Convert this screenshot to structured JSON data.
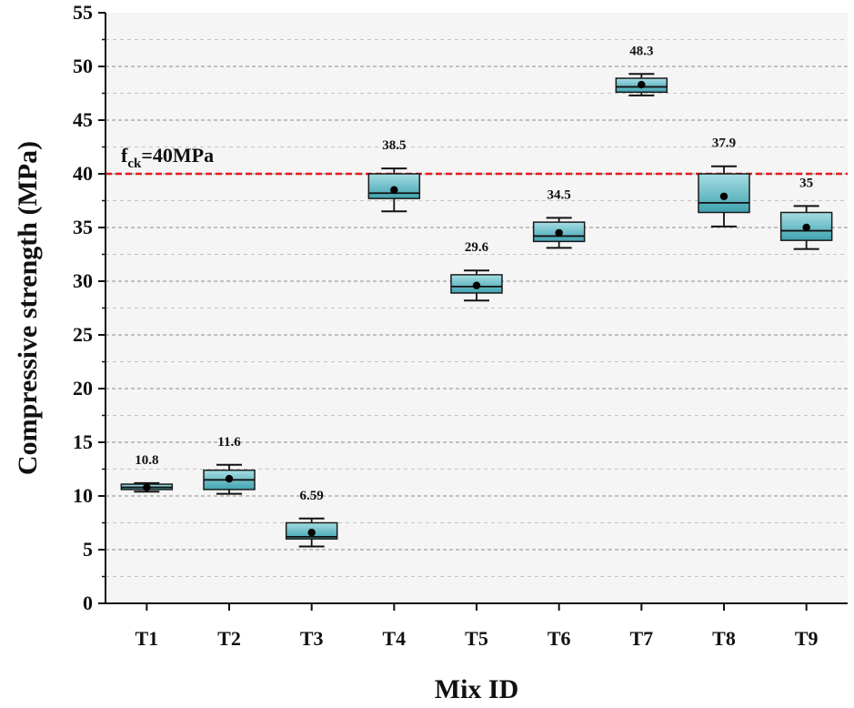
{
  "chart_data": {
    "type": "box",
    "xlabel": "Mix ID",
    "ylabel": "Compressive strength (MPa)",
    "ylim": [
      0,
      55
    ],
    "yticks": [
      0,
      5,
      10,
      15,
      20,
      25,
      30,
      35,
      40,
      45,
      50,
      55
    ],
    "ytick_labels": [
      "0",
      "5",
      "10",
      "15",
      "20",
      "25",
      "30",
      "35",
      "40",
      "45",
      "50",
      "55"
    ],
    "minor_grid_step": 2.5,
    "categories": [
      "T1",
      "T2",
      "T3",
      "T4",
      "T5",
      "T6",
      "T7",
      "T8",
      "T9"
    ],
    "boxes": [
      {
        "category": "T1",
        "whisker_low": 10.4,
        "q1": 10.6,
        "median": 10.8,
        "q3": 11.1,
        "whisker_high": 11.2,
        "mean": 10.8,
        "label": "10.8"
      },
      {
        "category": "T2",
        "whisker_low": 10.2,
        "q1": 10.6,
        "median": 11.5,
        "q3": 12.4,
        "whisker_high": 12.9,
        "mean": 11.6,
        "label": "11.6"
      },
      {
        "category": "T3",
        "whisker_low": 5.3,
        "q1": 6.0,
        "median": 6.2,
        "q3": 7.5,
        "whisker_high": 7.9,
        "mean": 6.59,
        "label": "6.59"
      },
      {
        "category": "T4",
        "whisker_low": 36.5,
        "q1": 37.7,
        "median": 38.2,
        "q3": 40.0,
        "whisker_high": 40.5,
        "mean": 38.5,
        "label": "38.5"
      },
      {
        "category": "T5",
        "whisker_low": 28.2,
        "q1": 28.9,
        "median": 29.5,
        "q3": 30.6,
        "whisker_high": 31.0,
        "mean": 29.6,
        "label": "29.6"
      },
      {
        "category": "T6",
        "whisker_low": 33.1,
        "q1": 33.7,
        "median": 34.2,
        "q3": 35.5,
        "whisker_high": 35.9,
        "mean": 34.5,
        "label": "34.5"
      },
      {
        "category": "T7",
        "whisker_low": 47.3,
        "q1": 47.6,
        "median": 48.1,
        "q3": 48.9,
        "whisker_high": 49.3,
        "mean": 48.3,
        "label": "48.3"
      },
      {
        "category": "T8",
        "whisker_low": 35.1,
        "q1": 36.4,
        "median": 37.3,
        "q3": 40.0,
        "whisker_high": 40.7,
        "mean": 37.9,
        "label": "37.9"
      },
      {
        "category": "T9",
        "whisker_low": 33.0,
        "q1": 33.8,
        "median": 34.7,
        "q3": 36.4,
        "whisker_high": 37.0,
        "mean": 35.0,
        "label": "35"
      }
    ],
    "reference_line": {
      "value": 40,
      "label_main": "f",
      "label_sub": "ck",
      "label_rest": "=40MPa",
      "color": "#e41a1c"
    },
    "box_fill_top": "#a6dde3",
    "box_fill_bottom": "#3fa3b0",
    "background": "#f5f5f5",
    "grid_color": "#9a9a9a"
  }
}
